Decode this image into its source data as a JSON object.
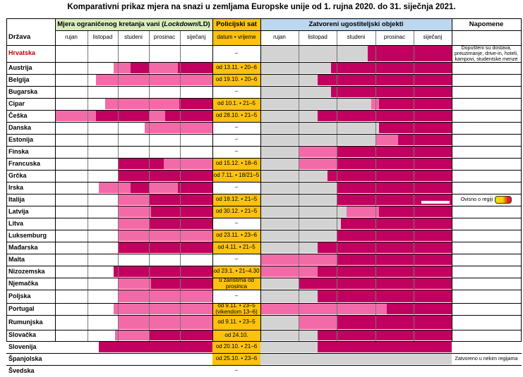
{
  "title": "Komparativni prikaz mjera na snazi u zemljama Europske unije od 1. rujna 2020. do 31. siječnja 2021.",
  "headers": {
    "country": "Država",
    "restrict_pre": "Mjera ograničenog kretanja vani (",
    "restrict_italic": "Lockdown",
    "restrict_post": "/LD)",
    "curfew": "Policijski sat",
    "curfew_sub": "datum • vrijeme",
    "closed": "Zatvoreni ugostiteljski objekti",
    "notes": "Napomene"
  },
  "months": [
    "rujan",
    "listopad",
    "studeni",
    "prosinac",
    "siječanj"
  ],
  "colors": {
    "magenta": "#c2005f",
    "pink": "#f36aa8",
    "grey": "#d3d3d3",
    "orange": "#fcc20e",
    "green_header": "#d9ebbf",
    "blue_header": "#bdd7ee",
    "highlight_red": "#c00000"
  },
  "countries": [
    {
      "name": "Hrvatska",
      "curfew": "–",
      "note": "Dopušteni su dostava, preuzimanje, drive-in, hoteli, kampovi, studentske menze",
      "lock": [],
      "closed": [
        [
          "g",
          0,
          0.56
        ],
        [
          "m",
          0.56,
          1
        ]
      ]
    },
    {
      "name": "Austrija",
      "curfew": "od 13.11. • 20–6",
      "lock": [
        [
          "p",
          0.37,
          0.48
        ],
        [
          "m",
          0.48,
          0.6
        ],
        [
          "p",
          0.6,
          0.78
        ],
        [
          "m",
          0.78,
          1
        ]
      ],
      "closed": [
        [
          "g",
          0,
          0.37
        ],
        [
          "m",
          0.37,
          1
        ]
      ]
    },
    {
      "name": "Belgija",
      "curfew": "od 19.10. • 20–6",
      "lock": [
        [
          "p",
          0.26,
          1
        ]
      ],
      "closed": [
        [
          "g",
          0,
          0.3
        ],
        [
          "m",
          0.3,
          1
        ]
      ]
    },
    {
      "name": "Bugarska",
      "curfew": "–",
      "lock": [],
      "closed": [
        [
          "g",
          0,
          0.37
        ],
        [
          "m",
          0.37,
          1
        ]
      ]
    },
    {
      "name": "Cipar",
      "curfew": "od 10.1. • 21–5",
      "lock": [
        [
          "p",
          0.32,
          0.79
        ],
        [
          "m",
          0.79,
          1
        ]
      ],
      "closed": [
        [
          "g",
          0,
          0.58
        ],
        [
          "p",
          0.58,
          0.62
        ],
        [
          "m",
          0.62,
          1
        ]
      ]
    },
    {
      "name": "Češka",
      "curfew": "od 28.10. • 21–5",
      "lock": [
        [
          "p",
          0,
          0.26
        ],
        [
          "m",
          0.26,
          0.6
        ],
        [
          "p",
          0.6,
          0.7
        ],
        [
          "m",
          0.7,
          1
        ]
      ],
      "closed": [
        [
          "g",
          0,
          0.3
        ],
        [
          "m",
          0.3,
          1
        ]
      ]
    },
    {
      "name": "Danska",
      "curfew": "–",
      "lock": [
        [
          "p",
          0.57,
          1
        ]
      ],
      "closed": [
        [
          "g",
          0,
          0.62
        ],
        [
          "m",
          0.62,
          1
        ]
      ]
    },
    {
      "name": "Estonija",
      "curfew": "–",
      "lock": [],
      "closed": [
        [
          "g",
          0,
          0.6
        ],
        [
          "p",
          0.6,
          0.72
        ],
        [
          "m",
          0.72,
          1
        ]
      ]
    },
    {
      "name": "Finska",
      "curfew": "–",
      "lock": [],
      "closed": [
        [
          "g",
          0,
          0.2
        ],
        [
          "p",
          0.2,
          0.4
        ],
        [
          "m",
          0.4,
          1
        ]
      ]
    },
    {
      "name": "Francuska",
      "curfew": "od 15.12. • 18–6",
      "lock": [
        [
          "m",
          0.4,
          0.69
        ],
        [
          "p",
          0.69,
          1
        ]
      ],
      "closed": [
        [
          "g",
          0,
          0.2
        ],
        [
          "p",
          0.2,
          0.4
        ],
        [
          "m",
          0.4,
          1
        ]
      ]
    },
    {
      "name": "Grčka",
      "curfew": "od 7.11. • 18/21–5",
      "lock": [
        [
          "m",
          0.4,
          1
        ]
      ],
      "closed": [
        [
          "g",
          0,
          0.35
        ],
        [
          "m",
          0.35,
          1
        ]
      ]
    },
    {
      "name": "Irska",
      "curfew": "–",
      "lock": [
        [
          "p",
          0.28,
          0.48
        ],
        [
          "m",
          0.48,
          0.6
        ],
        [
          "p",
          0.6,
          0.78
        ],
        [
          "m",
          0.78,
          1
        ]
      ],
      "closed": [
        [
          "g",
          0,
          0.4
        ],
        [
          "m",
          0.4,
          1
        ]
      ]
    },
    {
      "name": "Italija",
      "curfew": "od 18.12. • 21–5",
      "note": "Ovisno o regiji",
      "lock": [
        [
          "p",
          0.4,
          0.6
        ],
        [
          "m",
          0.6,
          1
        ]
      ],
      "closed": [
        [
          "g",
          0,
          0.4
        ],
        [
          "m",
          0.4,
          1
        ]
      ]
    },
    {
      "name": "Latvija",
      "curfew": "od 30.12. • 21–5",
      "lock": [
        [
          "p",
          0.4,
          0.61
        ],
        [
          "m",
          0.61,
          1
        ]
      ],
      "closed": [
        [
          "g",
          0,
          0.45
        ],
        [
          "p",
          0.45,
          0.62
        ],
        [
          "m",
          0.62,
          1
        ]
      ]
    },
    {
      "name": "Litva",
      "curfew": "–",
      "lock": [
        [
          "p",
          0.4,
          0.6
        ],
        [
          "m",
          0.6,
          1
        ]
      ],
      "closed": [
        [
          "g",
          0,
          0.42
        ],
        [
          "m",
          0.42,
          1
        ]
      ]
    },
    {
      "name": "Luksemburg",
      "curfew": "od 23.11. • 23–6",
      "lock": [
        [
          "p",
          0.4,
          1
        ]
      ],
      "closed": [
        [
          "g",
          0,
          0.4
        ],
        [
          "m",
          0.4,
          1
        ]
      ]
    },
    {
      "name": "Mađarska",
      "curfew": "od 4.11. • 21–5",
      "lock": [
        [
          "m",
          0.4,
          1
        ]
      ],
      "closed": [
        [
          "g",
          0,
          0.3
        ],
        [
          "m",
          0.3,
          1
        ]
      ]
    },
    {
      "name": "Malta",
      "curfew": "–",
      "lock": [],
      "closed": [
        [
          "p",
          0,
          0.4
        ],
        [
          "m",
          0.4,
          1
        ]
      ]
    },
    {
      "name": "Nizozemska",
      "curfew": "od 23.1. • 21–4.30",
      "lock": [
        [
          "m",
          0.37,
          1
        ]
      ],
      "closed": [
        [
          "p",
          0,
          0.3
        ],
        [
          "m",
          0.3,
          1
        ]
      ]
    },
    {
      "name": "Njemačka",
      "curfew": "u žarištima od prosinca",
      "lock": [
        [
          "p",
          0.4,
          0.61
        ],
        [
          "m",
          0.61,
          1
        ]
      ],
      "closed": [
        [
          "g",
          0,
          0.2
        ],
        [
          "m",
          0.2,
          1
        ]
      ]
    },
    {
      "name": "Poljska",
      "curfew": "–",
      "lock": [
        [
          "p",
          0.4,
          1
        ]
      ],
      "closed": [
        [
          "g",
          0,
          0.3
        ],
        [
          "m",
          0.3,
          1
        ]
      ]
    },
    {
      "name": "Portugal",
      "curfew": "od 9.11. • 23–5 (vikendom 13–6)",
      "lock": [
        [
          "p",
          0.37,
          1
        ]
      ],
      "closed": [
        [
          "p",
          0,
          0.66
        ],
        [
          "m",
          0.66,
          1
        ]
      ]
    },
    {
      "name": "Rumunjska",
      "curfew": "od 9.11. • 23–5",
      "lock": [
        [
          "p",
          0.4,
          1
        ]
      ],
      "closed": [
        [
          "g",
          0,
          0.2
        ],
        [
          "p",
          0.2,
          0.4
        ],
        [
          "m",
          0.4,
          1
        ]
      ]
    },
    {
      "name": "Slovačka",
      "curfew": "od 24.10.",
      "lock": [
        [
          "p",
          0.38,
          0.6
        ],
        [
          "m",
          0.6,
          1
        ]
      ],
      "closed": [
        [
          "g",
          0,
          0.3
        ],
        [
          "m",
          0.3,
          1
        ]
      ]
    },
    {
      "name": "Slovenija",
      "curfew": "od 20.10. • 21–6",
      "lock": [
        [
          "m",
          0.28,
          1
        ]
      ],
      "closed": [
        [
          "g",
          0,
          0.3
        ],
        [
          "m",
          0.3,
          1
        ]
      ]
    },
    {
      "name": "Španjolska",
      "curfew": "od 25.10. • 23–6",
      "note": "Zatvoreno u nekim regijama",
      "lock": [],
      "closed": [
        [
          "g",
          0,
          1
        ]
      ]
    },
    {
      "name": "Švedska",
      "curfew": "–",
      "lock": [],
      "closed": []
    }
  ]
}
